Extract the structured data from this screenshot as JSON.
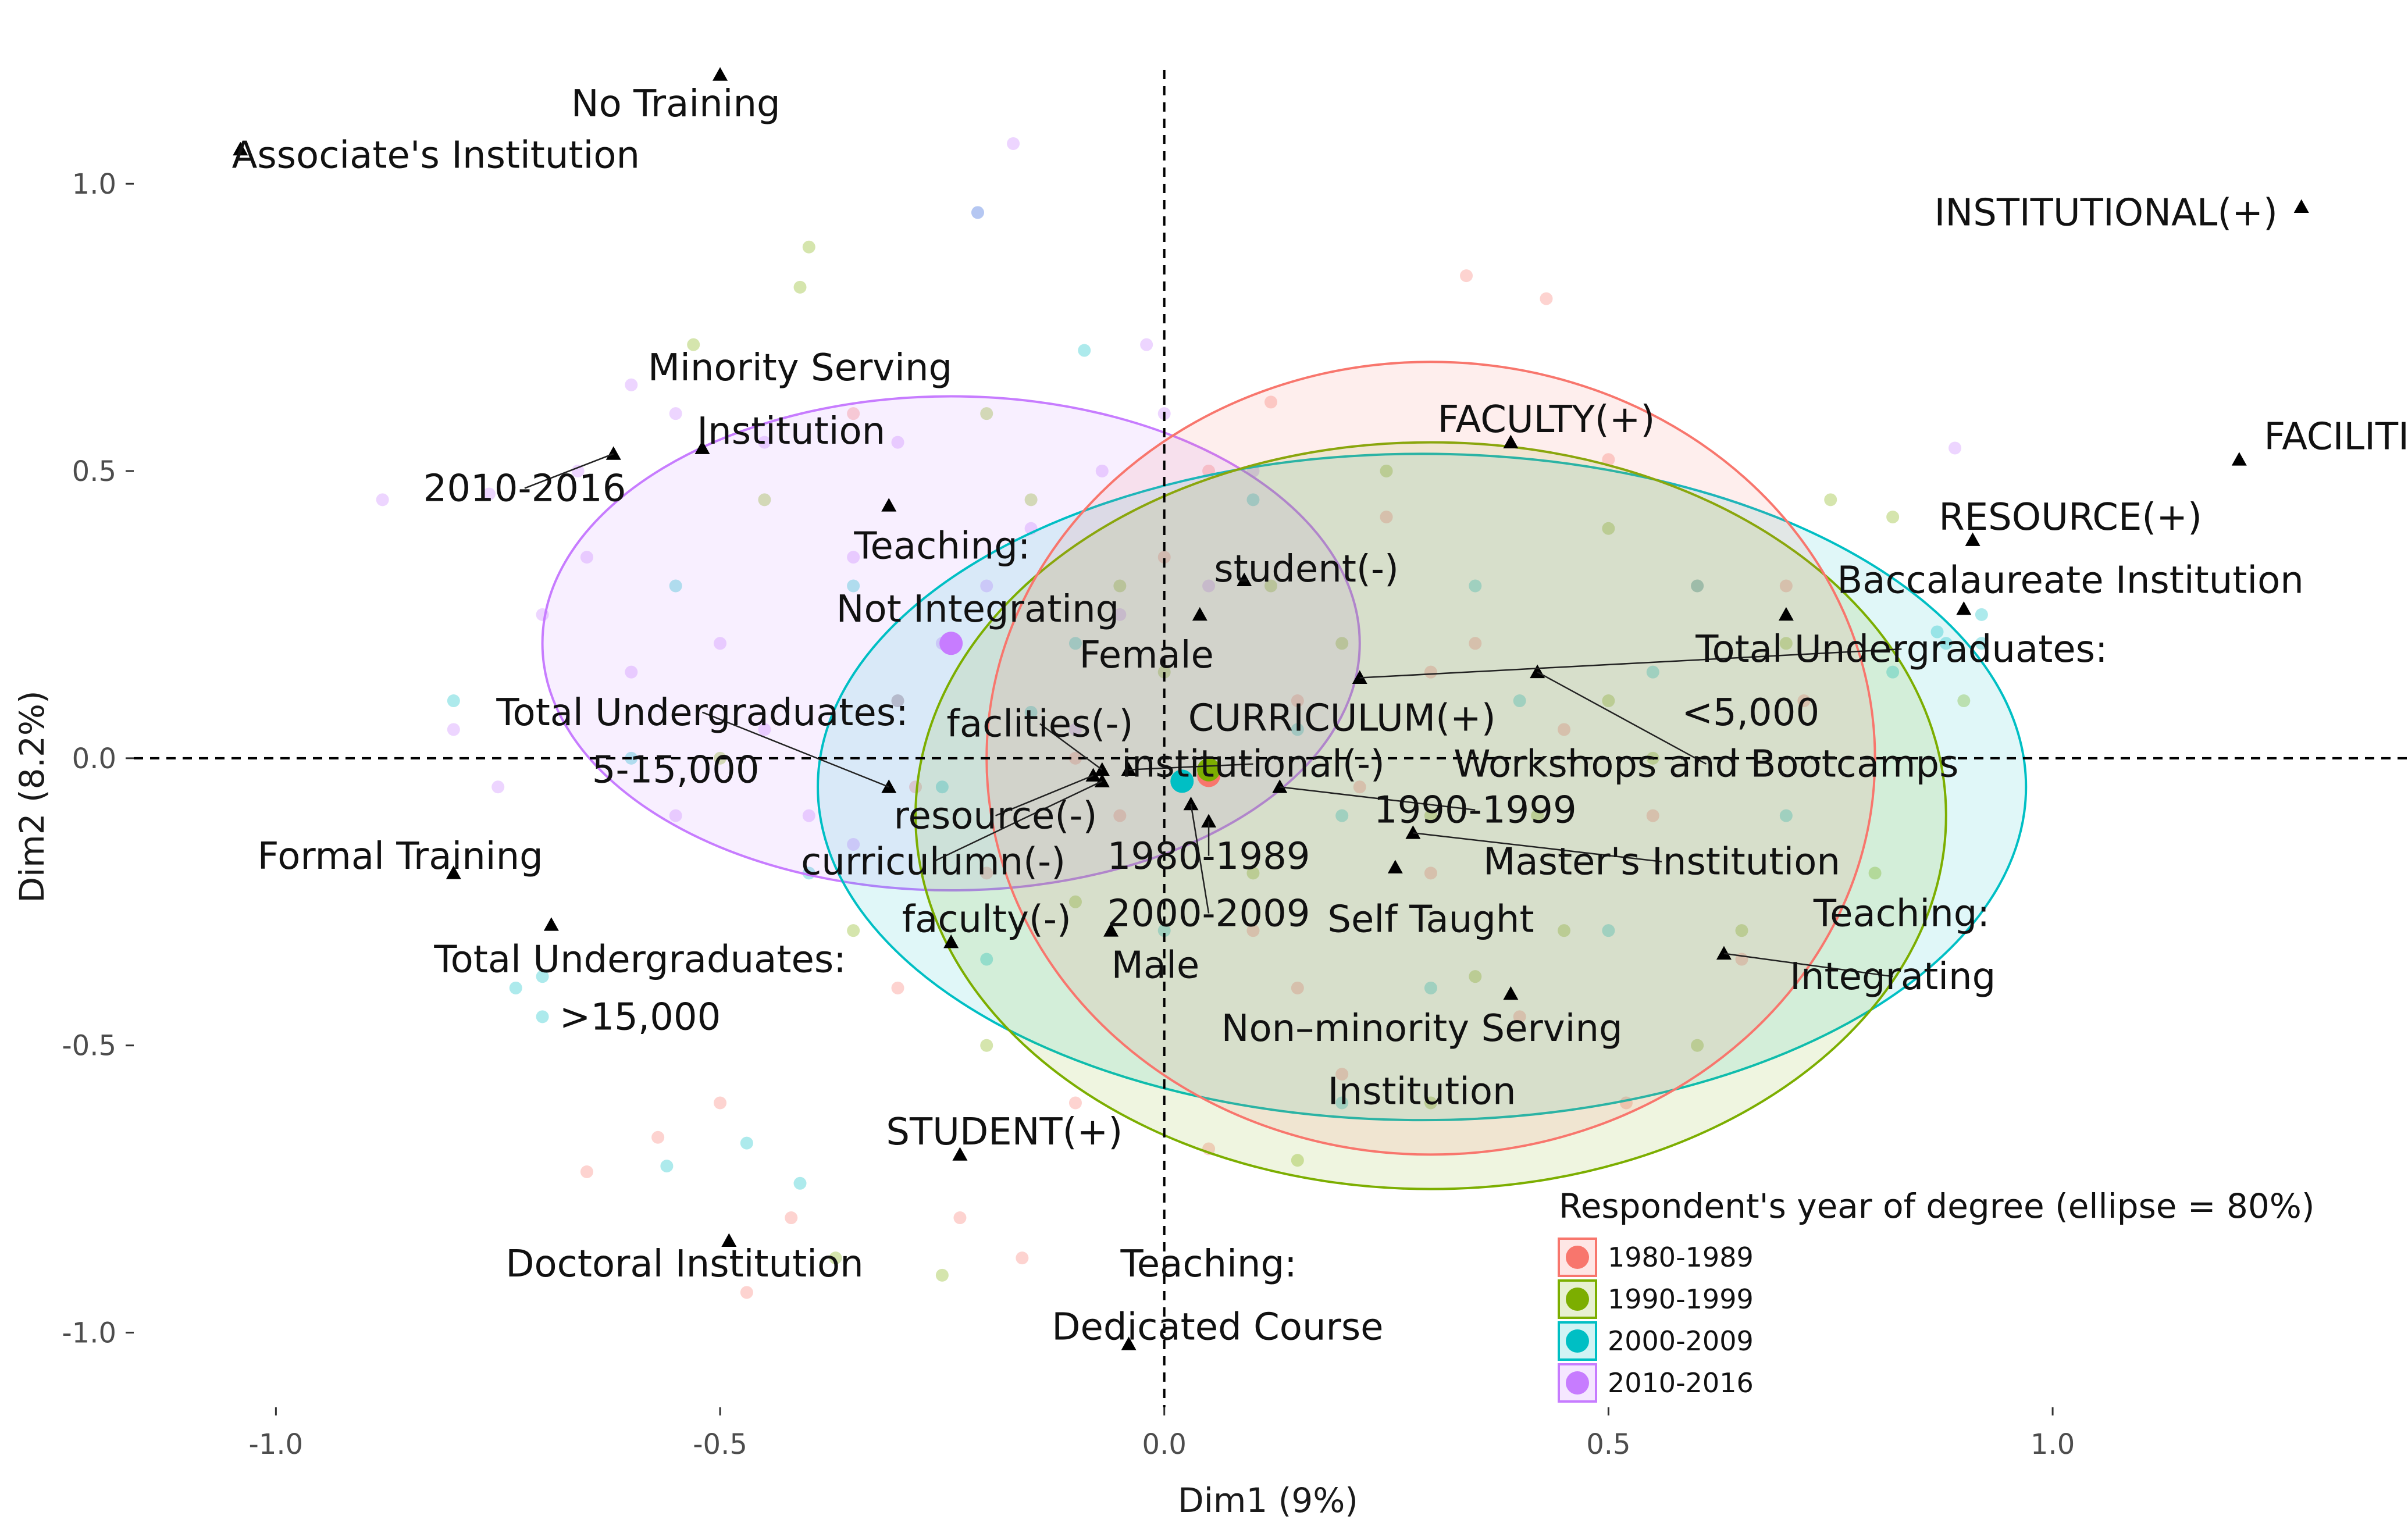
{
  "chart_data": {
    "type": "scatter",
    "title": "",
    "xlabel": "Dim1 (9%)",
    "ylabel": "Dim2 (8.2%)",
    "xlim": [
      -1.16,
      1.4
    ],
    "ylim": [
      -1.13,
      1.32
    ],
    "x_ticks": [
      -1.0,
      -0.5,
      0.0,
      0.5,
      1.0
    ],
    "y_ticks": [
      -1.0,
      -0.5,
      0.0,
      0.5,
      1.0
    ],
    "x_tick_labels": [
      "-1.0",
      "-0.5",
      "0.0",
      "0.5",
      "1.0"
    ],
    "y_tick_labels": [
      "-1.0",
      "-0.5",
      "0.0",
      "0.5",
      "1.0"
    ],
    "grid": false,
    "reference_lines": {
      "x": 0,
      "y": 0,
      "style": "dashed"
    },
    "legend": {
      "title": "Respondent's year of degree (ellipse = 80%)",
      "placement": "bottom-right"
    },
    "series": [
      {
        "name": "1980-1989",
        "color": "#F8766D",
        "centroid": [
          0.05,
          -0.03
        ],
        "ellipse": {
          "center": [
            0.3,
            0.0
          ],
          "rx": 0.5,
          "ry": 0.69
        },
        "points": [
          [
            0.34,
            0.84
          ],
          [
            0.43,
            0.8
          ],
          [
            0.12,
            0.62
          ],
          [
            0.5,
            0.52
          ],
          [
            0.25,
            0.42
          ],
          [
            0.6,
            0.3
          ],
          [
            0.35,
            0.2
          ],
          [
            0.15,
            0.1
          ],
          [
            0.45,
            0.05
          ],
          [
            0.55,
            -0.1
          ],
          [
            0.3,
            -0.2
          ],
          [
            0.1,
            -0.3
          ],
          [
            0.4,
            -0.45
          ],
          [
            0.2,
            -0.55
          ],
          [
            -0.1,
            -0.6
          ],
          [
            0.05,
            -0.68
          ],
          [
            -0.3,
            -0.4
          ],
          [
            -0.2,
            -0.2
          ],
          [
            0.65,
            -0.35
          ],
          [
            0.52,
            -0.6
          ],
          [
            -0.05,
            -0.1
          ],
          [
            0.0,
            0.35
          ],
          [
            -0.35,
            0.6
          ],
          [
            -0.42,
            -0.8
          ],
          [
            -0.65,
            -0.72
          ],
          [
            -0.57,
            -0.66
          ],
          [
            -0.5,
            -0.6
          ],
          [
            -0.23,
            -0.8
          ],
          [
            -0.16,
            -0.87
          ],
          [
            -0.47,
            -0.93
          ],
          [
            0.72,
            0.1
          ],
          [
            0.7,
            0.3
          ],
          [
            0.05,
            0.5
          ],
          [
            -0.28,
            -0.05
          ],
          [
            0.22,
            -0.05
          ],
          [
            0.3,
            0.15
          ],
          [
            -0.1,
            0.0
          ],
          [
            0.15,
            -0.4
          ]
        ]
      },
      {
        "name": "1990-1999",
        "color": "#7CAE00",
        "centroid": [
          0.05,
          -0.02
        ],
        "ellipse": {
          "center": [
            0.3,
            -0.1
          ],
          "rx": 0.58,
          "ry": 0.65
        },
        "points": [
          [
            -0.41,
            0.82
          ],
          [
            -0.4,
            0.89
          ],
          [
            -0.53,
            0.72
          ],
          [
            -0.15,
            0.45
          ],
          [
            0.2,
            0.2
          ],
          [
            0.5,
            0.4
          ],
          [
            0.7,
            0.2
          ],
          [
            0.75,
            0.45
          ],
          [
            0.82,
            0.42
          ],
          [
            0.5,
            0.1
          ],
          [
            0.3,
            -0.1
          ],
          [
            0.1,
            -0.2
          ],
          [
            0.45,
            -0.3
          ],
          [
            0.35,
            -0.38
          ],
          [
            0.6,
            -0.5
          ],
          [
            0.15,
            -0.7
          ],
          [
            -0.2,
            -0.5
          ],
          [
            -0.35,
            -0.3
          ],
          [
            -0.1,
            -0.25
          ],
          [
            -0.05,
            0.3
          ],
          [
            -0.5,
            0.0
          ],
          [
            -0.45,
            0.45
          ],
          [
            0.25,
            0.5
          ],
          [
            0.55,
            0.0
          ],
          [
            0.8,
            -0.2
          ],
          [
            -0.2,
            0.6
          ],
          [
            -0.37,
            -0.87
          ],
          [
            -0.25,
            -0.9
          ],
          [
            0.0,
            0.15
          ],
          [
            0.3,
            -0.6
          ],
          [
            0.65,
            -0.3
          ],
          [
            0.9,
            0.1
          ],
          [
            0.12,
            0.3
          ],
          [
            -0.3,
            0.1
          ],
          [
            0.42,
            -0.1
          ]
        ]
      },
      {
        "name": "2000-2009",
        "color": "#00BFC4",
        "centroid": [
          0.02,
          -0.04
        ],
        "ellipse": {
          "center": [
            0.29,
            -0.05
          ],
          "rx": 0.68,
          "ry": 0.58
        },
        "points": [
          [
            -0.21,
            0.95
          ],
          [
            -0.09,
            0.71
          ],
          [
            0.87,
            0.22
          ],
          [
            0.88,
            0.2
          ],
          [
            0.92,
            0.2
          ],
          [
            0.92,
            0.25
          ],
          [
            0.82,
            0.15
          ],
          [
            0.6,
            0.3
          ],
          [
            0.4,
            0.1
          ],
          [
            0.2,
            -0.1
          ],
          [
            0.0,
            -0.3
          ],
          [
            -0.2,
            -0.35
          ],
          [
            -0.4,
            -0.2
          ],
          [
            -0.6,
            0.0
          ],
          [
            -0.55,
            0.3
          ],
          [
            -0.35,
            0.3
          ],
          [
            -0.1,
            0.2
          ],
          [
            0.3,
            -0.4
          ],
          [
            0.5,
            -0.3
          ],
          [
            0.7,
            -0.1
          ],
          [
            -0.47,
            -0.67
          ],
          [
            -0.56,
            -0.71
          ],
          [
            -0.41,
            -0.74
          ],
          [
            -0.7,
            -0.38
          ],
          [
            -0.73,
            -0.4
          ],
          [
            -0.8,
            0.1
          ],
          [
            0.15,
            0.05
          ],
          [
            0.35,
            0.3
          ],
          [
            -0.25,
            -0.05
          ],
          [
            0.1,
            0.45
          ],
          [
            -0.7,
            -0.45
          ],
          [
            0.2,
            -0.6
          ],
          [
            0.55,
            0.15
          ],
          [
            -0.15,
            0.08
          ]
        ]
      },
      {
        "name": "2010-2016",
        "color": "#C77CFF",
        "centroid": [
          -0.24,
          0.2
        ],
        "ellipse": {
          "center": [
            -0.24,
            0.2
          ],
          "rx": 0.46,
          "ry": 0.43
        },
        "points": [
          [
            -0.17,
            1.07
          ],
          [
            -0.21,
            0.95
          ],
          [
            -0.07,
            0.5
          ],
          [
            -0.88,
            0.45
          ],
          [
            -0.76,
            0.46
          ],
          [
            -0.66,
            0.5
          ],
          [
            -0.55,
            0.6
          ],
          [
            -0.45,
            0.55
          ],
          [
            -0.3,
            0.55
          ],
          [
            -0.35,
            0.35
          ],
          [
            -0.2,
            0.3
          ],
          [
            -0.5,
            0.2
          ],
          [
            -0.6,
            0.15
          ],
          [
            -0.7,
            0.25
          ],
          [
            -0.45,
            0.05
          ],
          [
            -0.3,
            0.1
          ],
          [
            -0.15,
            0.4
          ],
          [
            0.0,
            0.6
          ],
          [
            0.1,
            0.5
          ],
          [
            -0.1,
            0.05
          ],
          [
            -0.4,
            -0.1
          ],
          [
            -0.25,
            0.2
          ],
          [
            -0.75,
            -0.05
          ],
          [
            -0.65,
            0.35
          ],
          [
            0.89,
            0.54
          ],
          [
            -0.05,
            0.25
          ],
          [
            -0.55,
            -0.1
          ],
          [
            -0.35,
            -0.15
          ],
          [
            0.05,
            0.3
          ],
          [
            -0.8,
            0.05
          ],
          [
            -0.6,
            0.65
          ],
          [
            -0.02,
            0.72
          ]
        ]
      }
    ],
    "variable_points": [
      {
        "label": "No Training",
        "x": -0.5,
        "y": 1.19
      },
      {
        "label": "Associate's Institution",
        "x": -1.04,
        "y": 1.06
      },
      {
        "label": "INSTITUTIONAL(+)",
        "x": 1.28,
        "y": 0.96
      },
      {
        "label": "FACILITIES(+)",
        "x": 1.21,
        "y": 0.52
      },
      {
        "label": "RESOURCE(+)",
        "x": 0.91,
        "y": 0.38
      },
      {
        "label": "Baccalaureate Institution",
        "x": 0.9,
        "y": 0.26
      },
      {
        "label": "FACULTY(+)",
        "x": 0.39,
        "y": 0.55
      },
      {
        "label": "Minority Serving Institution",
        "x": -0.52,
        "y": 0.54
      },
      {
        "label": "2010-2016",
        "x": -0.62,
        "y": 0.53
      },
      {
        "label": "Teaching: Not Integrating",
        "x": -0.31,
        "y": 0.44
      },
      {
        "label": "student(-)",
        "x": 0.09,
        "y": 0.31
      },
      {
        "label": "Female",
        "x": 0.04,
        "y": 0.25
      },
      {
        "label": "Total Undergraduates: <5,000",
        "x": 0.7,
        "y": 0.25
      },
      {
        "label": "CURRICULUM(+)",
        "x": 0.22,
        "y": 0.14
      },
      {
        "label": "Workshops and Bootcamps",
        "x": 0.42,
        "y": 0.15
      },
      {
        "label": "faclities(-)",
        "x": -0.07,
        "y": -0.02
      },
      {
        "label": "institutional(-)",
        "x": -0.04,
        "y": -0.02
      },
      {
        "label": "resource(-)",
        "x": -0.08,
        "y": -0.03
      },
      {
        "label": "curriculumn(-)",
        "x": -0.07,
        "y": -0.04
      },
      {
        "label": "Total Undergraduates: 5-15,000",
        "x": -0.31,
        "y": -0.05
      },
      {
        "label": "1990-1999",
        "x": 0.13,
        "y": -0.05
      },
      {
        "label": "1980-1989",
        "x": 0.05,
        "y": -0.11
      },
      {
        "label": "Master's Institution",
        "x": 0.28,
        "y": -0.13
      },
      {
        "label": "Self Taught",
        "x": 0.26,
        "y": -0.19
      },
      {
        "label": "2000-2009",
        "x": 0.03,
        "y": -0.08
      },
      {
        "label": "Formal Training",
        "x": -0.8,
        "y": -0.2
      },
      {
        "label": "Total Undergraduates: >15,000",
        "x": -0.69,
        "y": -0.29
      },
      {
        "label": "faculty(-)",
        "x": -0.24,
        "y": -0.32
      },
      {
        "label": "Male",
        "x": -0.06,
        "y": -0.3
      },
      {
        "label": "Teaching: Integrating",
        "x": 0.63,
        "y": -0.34
      },
      {
        "label": "Non–minority Serving Institution",
        "x": 0.39,
        "y": -0.41
      },
      {
        "label": "STUDENT(+)",
        "x": -0.23,
        "y": -0.69
      },
      {
        "label": "Doctoral Institution",
        "x": -0.49,
        "y": -0.84
      },
      {
        "label": "Teaching: Dedicated Course",
        "x": -0.04,
        "y": -1.02
      }
    ],
    "annotations": [
      {
        "text": "No Training",
        "x": -0.55,
        "y": 1.14
      },
      {
        "text": "Associate's Institution",
        "x": -0.82,
        "y": 1.05
      },
      {
        "text": "INSTITUTIONAL(+)",
        "x": 1.06,
        "y": 0.95
      },
      {
        "text": "FACILITIES(+)",
        "x": 1.38,
        "y": 0.56
      },
      {
        "text": "RESOURCE(+)",
        "x": 1.02,
        "y": 0.42
      },
      {
        "text": "Baccalaureate Institution",
        "x": 1.02,
        "y": 0.31
      },
      {
        "text": "Minority Serving",
        "x": -0.41,
        "y": 0.68
      },
      {
        "text": "Institution",
        "x": -0.42,
        "y": 0.57
      },
      {
        "text": "FACULTY(+)",
        "x": 0.43,
        "y": 0.59
      },
      {
        "text": "2010-2016",
        "x": -0.72,
        "y": 0.47
      },
      {
        "text": "Teaching:",
        "x": -0.25,
        "y": 0.37
      },
      {
        "text": "Not Integrating",
        "x": -0.21,
        "y": 0.26
      },
      {
        "text": "student(-)",
        "x": 0.16,
        "y": 0.33
      },
      {
        "text": "Female",
        "x": -0.02,
        "y": 0.18
      },
      {
        "text": "Total Undergraduates:",
        "x": 0.83,
        "y": 0.19
      },
      {
        "text": "<5,000",
        "x": 0.66,
        "y": 0.08
      },
      {
        "text": "Total Undergraduates:",
        "x": -0.52,
        "y": 0.08
      },
      {
        "text": "5-15,000",
        "x": -0.55,
        "y": -0.02
      },
      {
        "text": "CURRICULUM(+)",
        "x": 0.2,
        "y": 0.07
      },
      {
        "text": "faclities(-)",
        "x": -0.14,
        "y": 0.06
      },
      {
        "text": "institutional(-)",
        "x": 0.1,
        "y": -0.01
      },
      {
        "text": "Workshops and Bootcamps",
        "x": 0.61,
        "y": -0.01
      },
      {
        "text": "resource(-)",
        "x": -0.19,
        "y": -0.1
      },
      {
        "text": "1990-1999",
        "x": 0.35,
        "y": -0.09
      },
      {
        "text": "curriculumn(-)",
        "x": -0.26,
        "y": -0.18
      },
      {
        "text": "1980-1989",
        "x": 0.05,
        "y": -0.17
      },
      {
        "text": "Master's Institution",
        "x": 0.56,
        "y": -0.18
      },
      {
        "text": "Formal Training",
        "x": -0.86,
        "y": -0.17
      },
      {
        "text": "faculty(-)",
        "x": -0.2,
        "y": -0.28
      },
      {
        "text": "2000-2009",
        "x": 0.05,
        "y": -0.27
      },
      {
        "text": "Self Taught",
        "x": 0.3,
        "y": -0.28
      },
      {
        "text": "Teaching:",
        "x": 0.83,
        "y": -0.27
      },
      {
        "text": "Total Undergraduates:",
        "x": -0.59,
        "y": -0.35
      },
      {
        "text": "Male",
        "x": -0.01,
        "y": -0.36
      },
      {
        "text": "Integrating",
        "x": 0.82,
        "y": -0.38
      },
      {
        "text": "Non–minority Serving",
        "x": 0.29,
        "y": -0.47
      },
      {
        "text": ">15,000",
        "x": -0.59,
        "y": -0.45
      },
      {
        "text": "Institution",
        "x": 0.29,
        "y": -0.58
      },
      {
        "text": "STUDENT(+)",
        "x": -0.18,
        "y": -0.65
      },
      {
        "text": "Doctoral Institution",
        "x": -0.54,
        "y": -0.88
      },
      {
        "text": "Teaching:",
        "x": 0.05,
        "y": -0.88
      },
      {
        "text": "Dedicated Course",
        "x": 0.06,
        "y": -0.99
      }
    ]
  }
}
